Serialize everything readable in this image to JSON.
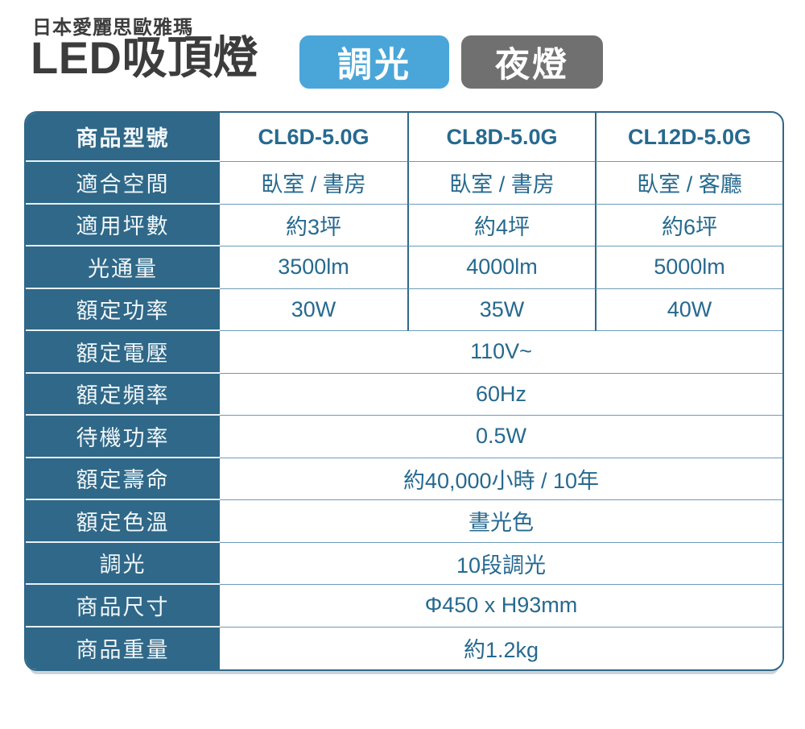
{
  "header": {
    "brand": "日本愛麗思歐雅瑪",
    "title": "LED吸頂燈",
    "badges": [
      {
        "label": "調光",
        "color": "#4aa6d8"
      },
      {
        "label": "夜燈",
        "color": "#707070"
      }
    ]
  },
  "table": {
    "colors": {
      "label_bg": "#2f6888",
      "label_text": "#f2f7fa",
      "value_text": "#26698f",
      "outer_border": "#2f6888",
      "row_divider": "#6c9cb8",
      "label_divider": "#e8f0f5"
    },
    "rows": [
      {
        "label": "商品型號",
        "bold": true,
        "values": [
          "CL6D-5.0G",
          "CL8D-5.0G",
          "CL12D-5.0G"
        ]
      },
      {
        "label": "適合空間",
        "values": [
          "臥室 / 書房",
          "臥室 / 書房",
          "臥室 / 客廳"
        ]
      },
      {
        "label": "適用坪數",
        "values": [
          "約3坪",
          "約4坪",
          "約6坪"
        ]
      },
      {
        "label": "光通量",
        "values": [
          "3500lm",
          "4000lm",
          "5000lm"
        ]
      },
      {
        "label": "額定功率",
        "values": [
          "30W",
          "35W",
          "40W"
        ]
      },
      {
        "label": "額定電壓",
        "span": "110V~"
      },
      {
        "label": "額定頻率",
        "span": "60Hz"
      },
      {
        "label": "待機功率",
        "span": "0.5W"
      },
      {
        "label": "額定壽命",
        "span": "約40,000小時 / 10年"
      },
      {
        "label": "額定色溫",
        "span": "晝光色"
      },
      {
        "label": "調光",
        "span": "10段調光"
      },
      {
        "label": "商品尺寸",
        "span": "Φ450 x H93mm"
      },
      {
        "label": "商品重量",
        "span": "約1.2kg"
      }
    ]
  }
}
